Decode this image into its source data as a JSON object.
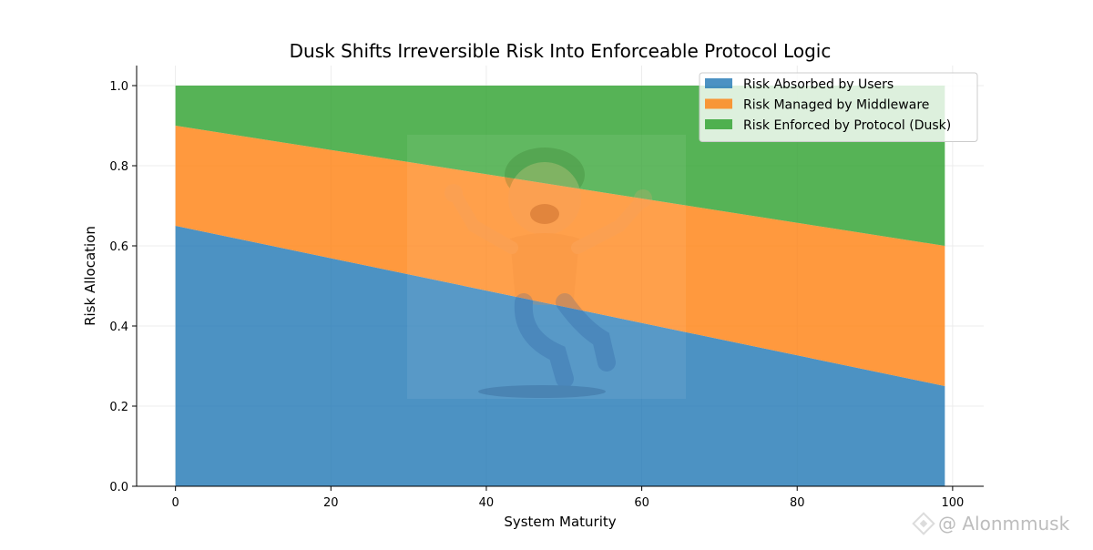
{
  "chart_data": {
    "type": "area",
    "title": "Dusk Shifts Irreversible Risk Into Enforceable Protocol Logic",
    "xlabel": "System Maturity",
    "ylabel": "Risk Allocation",
    "xlim": [
      -5,
      104
    ],
    "ylim": [
      0,
      1.05
    ],
    "x_ticks": [
      0,
      20,
      40,
      60,
      80,
      100
    ],
    "y_ticks": [
      0.0,
      0.2,
      0.4,
      0.6,
      0.8,
      1.0
    ],
    "x_tick_labels": [
      "0",
      "20",
      "40",
      "60",
      "80",
      "100"
    ],
    "y_tick_labels": [
      "0.0",
      "0.2",
      "0.4",
      "0.6",
      "0.8",
      "1.0"
    ],
    "x": [
      0,
      99
    ],
    "stacked": true,
    "grid": true,
    "legend_position": "top-right",
    "series": [
      {
        "name": "Risk Absorbed by Users",
        "values": [
          0.65,
          0.25
        ],
        "color": "#1f77b4"
      },
      {
        "name": "Risk Managed by Middleware",
        "values": [
          0.25,
          0.35
        ],
        "color": "#ff7f0e"
      },
      {
        "name": "Risk Enforced by Protocol (Dusk)",
        "values": [
          0.1,
          0.4
        ],
        "color": "#2ca02c"
      }
    ]
  },
  "watermark": {
    "text": "@ Alonmmusk",
    "icon": "binance-logo-icon"
  }
}
